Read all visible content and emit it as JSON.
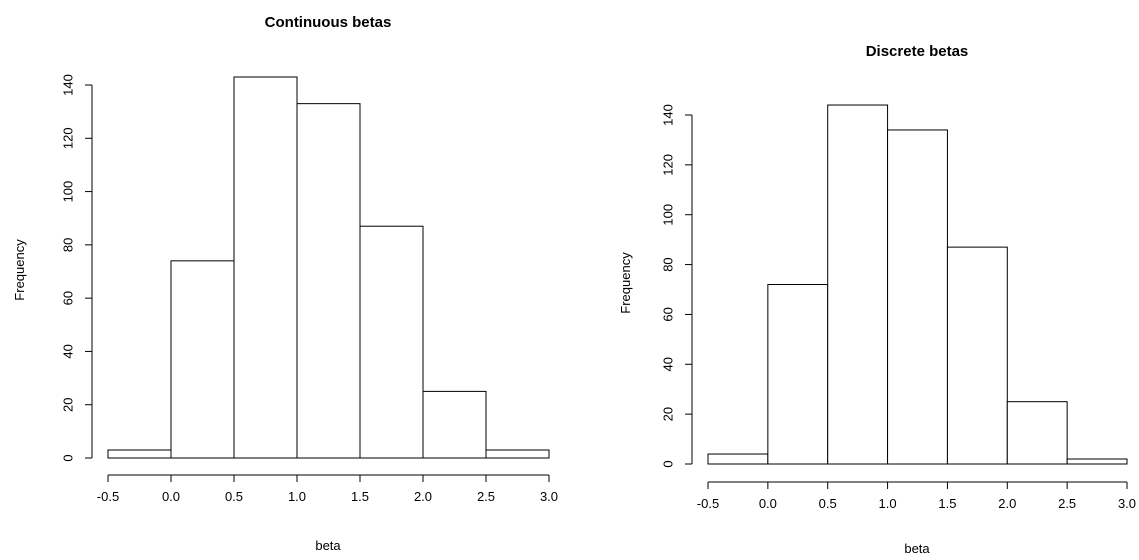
{
  "chart_data": [
    {
      "type": "bar",
      "title": "Continuous betas",
      "xlabel": "beta",
      "ylabel": "Frequency",
      "bin_edges": [
        -0.5,
        0.0,
        0.5,
        1.0,
        1.5,
        2.0,
        2.5,
        3.0
      ],
      "values": [
        3,
        74,
        143,
        133,
        87,
        25,
        3
      ],
      "xlim": [
        -0.5,
        3.0
      ],
      "ylim": [
        0,
        140
      ],
      "x_ticks": [
        "-0.5",
        "0.0",
        "0.5",
        "1.0",
        "1.5",
        "2.0",
        "2.5",
        "3.0"
      ],
      "y_ticks": [
        "0",
        "20",
        "40",
        "60",
        "80",
        "100",
        "120",
        "140"
      ],
      "grid": false
    },
    {
      "type": "bar",
      "title": "Discrete betas",
      "xlabel": "beta",
      "ylabel": "Frequency",
      "bin_edges": [
        -0.5,
        0.0,
        0.5,
        1.0,
        1.5,
        2.0,
        2.5,
        3.0
      ],
      "values": [
        4,
        72,
        144,
        134,
        87,
        25,
        2
      ],
      "xlim": [
        -0.5,
        3.0
      ],
      "ylim": [
        0,
        140
      ],
      "x_ticks": [
        "-0.5",
        "0.0",
        "0.5",
        "1.0",
        "1.5",
        "2.0",
        "2.5",
        "3.0"
      ],
      "y_ticks": [
        "0",
        "20",
        "40",
        "60",
        "80",
        "100",
        "120",
        "140"
      ],
      "grid": false
    }
  ]
}
